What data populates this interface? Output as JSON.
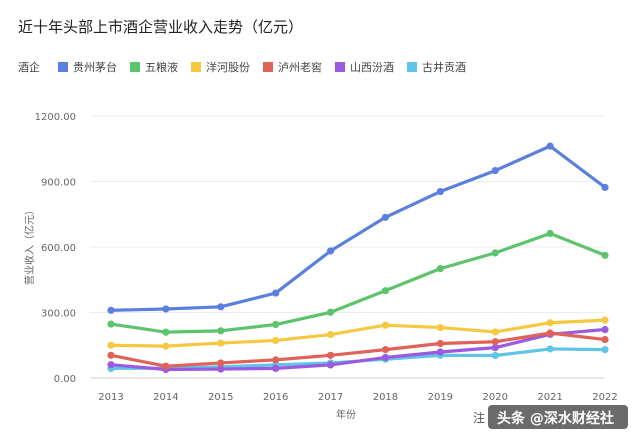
{
  "chart_data": {
    "type": "line",
    "title": "近十年头部上市酒企营业收入走势（亿元）",
    "legend_title": "酒企",
    "legend_position": "top-left",
    "xlabel": "年份",
    "ylabel": "营业收入（亿元）",
    "ylim": [
      0,
      1200
    ],
    "yticks": [
      "0.00",
      "300.00",
      "600.00",
      "900.00",
      "1200.00"
    ],
    "grid": true,
    "categories": [
      "2013",
      "2014",
      "2015",
      "2016",
      "2017",
      "2018",
      "2019",
      "2020",
      "2021",
      "2022"
    ],
    "series": [
      {
        "name": "贵州茅台",
        "color": "#5b7fde",
        "values": [
          310,
          316,
          326,
          389,
          582,
          736,
          854,
          950,
          1062,
          873
        ]
      },
      {
        "name": "五粮液",
        "color": "#5dc36c",
        "values": [
          247,
          210,
          216,
          245,
          301,
          400,
          501,
          573,
          662,
          562
        ]
      },
      {
        "name": "洋河股份",
        "color": "#f5c842",
        "values": [
          150,
          146,
          160,
          172,
          199,
          242,
          231,
          211,
          253,
          265
        ]
      },
      {
        "name": "泸州老窖",
        "color": "#e06258",
        "values": [
          104,
          54,
          69,
          83,
          104,
          130,
          158,
          166,
          206,
          176
        ]
      },
      {
        "name": "山西汾酒",
        "color": "#9a5be0",
        "values": [
          61,
          39,
          41,
          44,
          60,
          94,
          119,
          139,
          200,
          222
        ]
      },
      {
        "name": "古井贡酒",
        "color": "#5fc4e6",
        "values": [
          44,
          45,
          51,
          60,
          69,
          86,
          104,
          103,
          133,
          130
        ]
      }
    ]
  },
  "footer": {
    "note": "注",
    "brand": "头条 @深水财经社"
  }
}
